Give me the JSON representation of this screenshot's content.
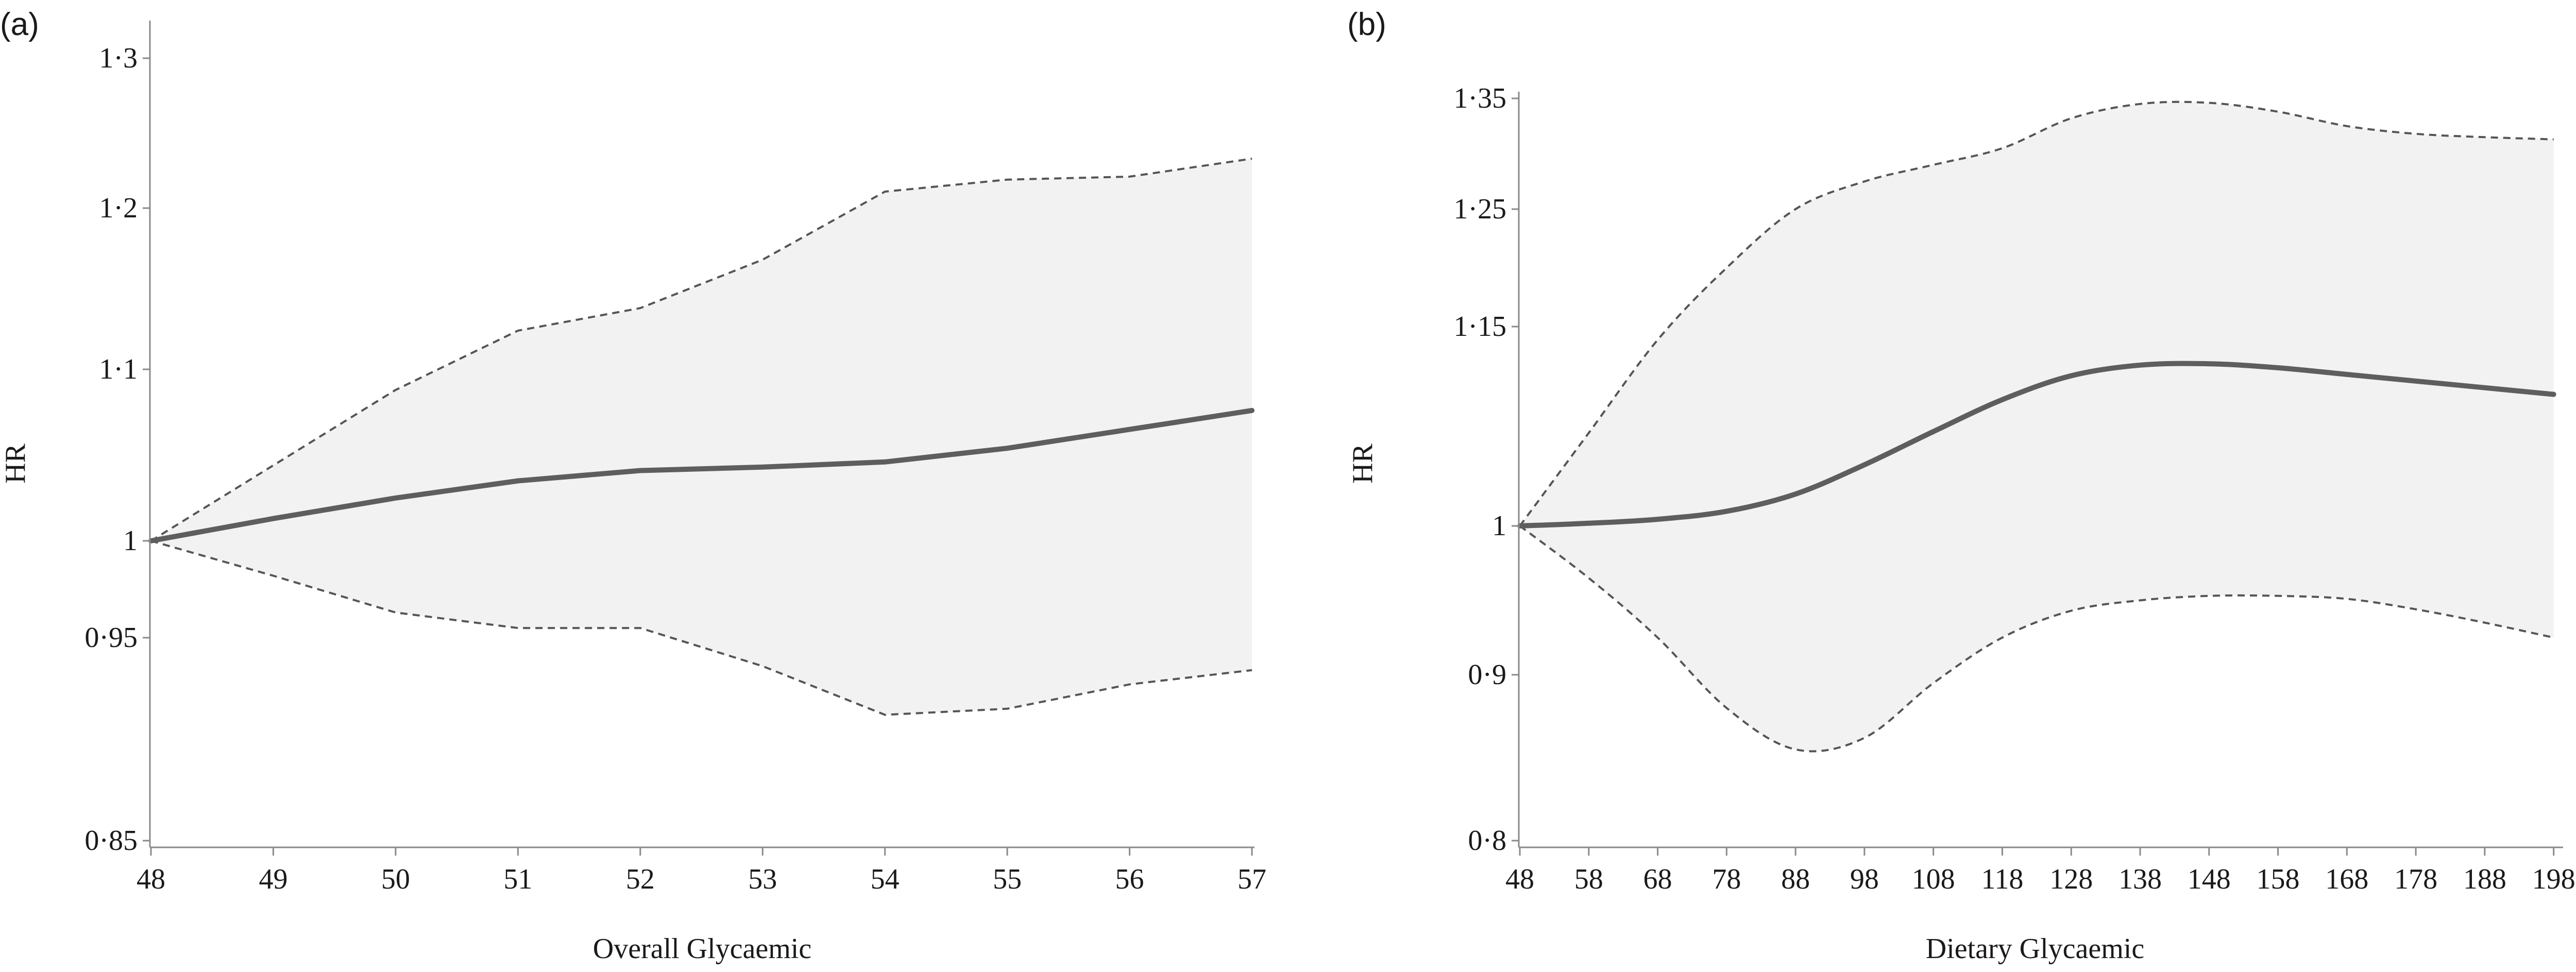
{
  "chart_data": [
    {
      "type": "line",
      "panel_label": "(a)",
      "xlabel": "Overall Glycaemic",
      "ylabel": "HR",
      "x": [
        48,
        49,
        50,
        51,
        52,
        53,
        54,
        55,
        56,
        57
      ],
      "xlim": [
        48,
        57
      ],
      "ylim": [
        0.85,
        1.3
      ],
      "y_ticks": [
        0.85,
        0.95,
        1,
        1.1,
        1.2,
        1.3
      ],
      "y_tick_labels": [
        "0·85",
        "0·95",
        "1",
        "1·1",
        "1·2",
        "1·3"
      ],
      "x_tick_labels": [
        "48",
        "49",
        "50",
        "51",
        "52",
        "53",
        "54",
        "55",
        "56",
        "57"
      ],
      "grid": false,
      "series": [
        {
          "role": "estimate",
          "values": [
            1.0,
            1.013,
            1.025,
            1.035,
            1.041,
            1.043,
            1.046,
            1.054,
            1.065,
            1.076
          ]
        },
        {
          "role": "upper",
          "values": [
            1.0,
            1.044,
            1.088,
            1.124,
            1.138,
            1.168,
            1.211,
            1.219,
            1.221,
            1.233
          ]
        },
        {
          "role": "lower",
          "values": [
            1.0,
            0.982,
            0.963,
            0.955,
            0.955,
            0.936,
            0.912,
            0.915,
            0.927,
            0.934
          ]
        }
      ]
    },
    {
      "type": "line",
      "panel_label": "(b)",
      "xlabel": "Dietary Glycaemic",
      "ylabel": "HR",
      "x": [
        48,
        58,
        68,
        78,
        88,
        98,
        108,
        118,
        128,
        138,
        148,
        158,
        168,
        178,
        188,
        198
      ],
      "xlim": [
        48,
        199
      ],
      "ylim": [
        0.8,
        1.35
      ],
      "y_ticks": [
        0.8,
        0.9,
        1,
        1.15,
        1.25,
        1.35
      ],
      "y_tick_labels": [
        "0·8",
        "0·9",
        "1",
        "1·15",
        "1·25",
        "1·35"
      ],
      "x_tick_labels": [
        "48",
        "58",
        "68",
        "78",
        "88",
        "98",
        "108",
        "118",
        "128",
        "138",
        "148",
        "158",
        "168",
        "178",
        "188",
        "198"
      ],
      "grid": false,
      "series": [
        {
          "role": "estimate",
          "values": [
            1.0,
            1.002,
            1.005,
            1.011,
            1.024,
            1.046,
            1.071,
            1.095,
            1.113,
            1.121,
            1.122,
            1.119,
            1.114,
            1.109,
            1.104,
            1.099
          ]
        },
        {
          "role": "upper",
          "values": [
            1.0,
            1.07,
            1.14,
            1.2,
            1.25,
            1.275,
            1.29,
            1.305,
            1.332,
            1.345,
            1.346,
            1.338,
            1.325,
            1.318,
            1.315,
            1.313
          ]
        },
        {
          "role": "lower",
          "values": [
            1.0,
            0.965,
            0.925,
            0.88,
            0.855,
            0.862,
            0.895,
            0.925,
            0.943,
            0.95,
            0.953,
            0.953,
            0.951,
            0.944,
            0.935,
            0.925
          ]
        }
      ]
    }
  ]
}
